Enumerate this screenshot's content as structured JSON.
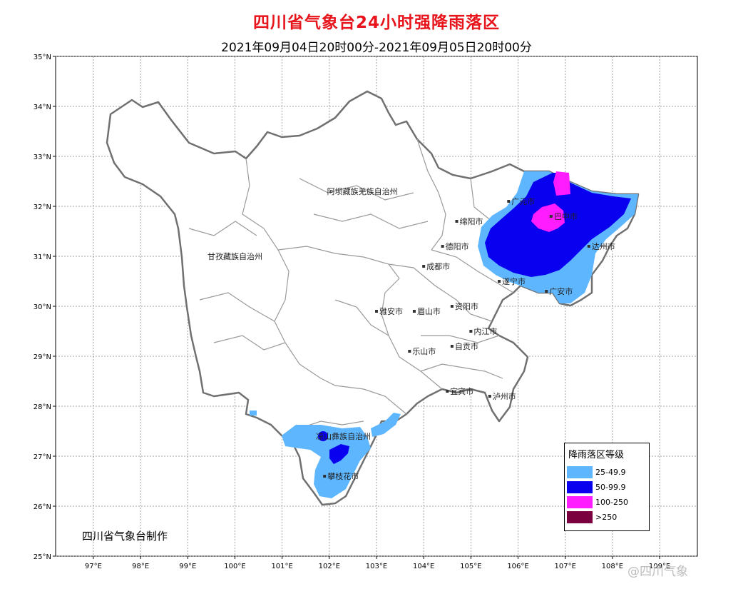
{
  "header": {
    "title": "四川省气象台24小时强降雨落区",
    "subtitle": "2021年09月04日20时00分-2021年09月05日20时00分"
  },
  "axes": {
    "lon_ticks": [
      "97°E",
      "98°E",
      "99°E",
      "100°E",
      "101°E",
      "102°E",
      "103°E",
      "104°E",
      "105°E",
      "106°E",
      "107°E",
      "108°E",
      "109°E"
    ],
    "lat_ticks": [
      "35°N",
      "34°N",
      "33°N",
      "32°N",
      "31°N",
      "30°N",
      "29°N",
      "28°N",
      "27°N",
      "26°N",
      "25°N"
    ],
    "lon_range": [
      96.2,
      109.8
    ],
    "lat_range": [
      25,
      35
    ]
  },
  "places": [
    {
      "name": "阿坝藏族羌族自治州",
      "lon": 102.7,
      "lat": 32.3
    },
    {
      "name": "甘孜藏族自治州",
      "lon": 100.0,
      "lat": 31.0
    },
    {
      "name": "绵阳市",
      "lon": 104.7,
      "lat": 31.7
    },
    {
      "name": "广元市",
      "lon": 105.8,
      "lat": 32.1
    },
    {
      "name": "巴中市",
      "lon": 106.7,
      "lat": 31.8
    },
    {
      "name": "德阳市",
      "lon": 104.4,
      "lat": 31.2
    },
    {
      "name": "达州市",
      "lon": 107.5,
      "lat": 31.2
    },
    {
      "name": "成都市",
      "lon": 104.0,
      "lat": 30.8
    },
    {
      "name": "遂宁市",
      "lon": 105.6,
      "lat": 30.5
    },
    {
      "name": "广安市",
      "lon": 106.6,
      "lat": 30.3
    },
    {
      "name": "资阳市",
      "lon": 104.6,
      "lat": 30.0
    },
    {
      "name": "雅安市",
      "lon": 103.0,
      "lat": 29.9
    },
    {
      "name": "眉山市",
      "lon": 103.8,
      "lat": 29.9
    },
    {
      "name": "内江市",
      "lon": 105.0,
      "lat": 29.5
    },
    {
      "name": "乐山市",
      "lon": 103.7,
      "lat": 29.1
    },
    {
      "name": "自贡市",
      "lon": 104.6,
      "lat": 29.2
    },
    {
      "name": "宜宾市",
      "lon": 104.5,
      "lat": 28.3
    },
    {
      "name": "泸州市",
      "lon": 105.4,
      "lat": 28.2
    },
    {
      "name": "凉山彝族自治州",
      "lon": 102.3,
      "lat": 27.4
    },
    {
      "name": "攀枝花市",
      "lon": 101.9,
      "lat": 26.6
    }
  ],
  "legend": {
    "title": "降雨落区等级",
    "items": [
      {
        "label": "25-49.9",
        "color": "#5eb6ff"
      },
      {
        "label": "50-99.9",
        "color": "#0a00f0"
      },
      {
        "label": "100-250",
        "color": "#ff1cff"
      },
      {
        "label": ">250",
        "color": "#7a0040"
      }
    ]
  },
  "footer": {
    "maker": "四川省气象台制作"
  },
  "watermark": "@四川气象"
}
